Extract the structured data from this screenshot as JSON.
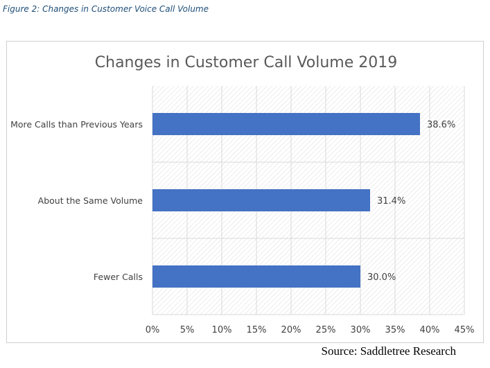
{
  "caption": "Figure 2: Changes in Customer Voice Call Volume",
  "source": "Source: Saddletree Research",
  "colors": {
    "bar": "#4472c4",
    "grid": "#d9d9d9",
    "title": "#595959",
    "text": "#404040",
    "caption": "#1f4e79"
  },
  "chart_data": {
    "type": "bar",
    "orientation": "horizontal",
    "title": "Changes in Customer Call Volume 2019",
    "categories": [
      "More Calls than Previous Years",
      "About the Same Volume",
      "Fewer Calls"
    ],
    "values": [
      38.6,
      31.4,
      30.0
    ],
    "data_labels": [
      "38.6%",
      "31.4%",
      "30.0%"
    ],
    "xlim": [
      0,
      45
    ],
    "xticks": [
      0,
      5,
      10,
      15,
      20,
      25,
      30,
      35,
      40,
      45
    ],
    "xtick_labels": [
      "0%",
      "5%",
      "10%",
      "15%",
      "20%",
      "25%",
      "30%",
      "35%",
      "40%",
      "45%"
    ],
    "xlabel": "",
    "ylabel": "",
    "grid": true,
    "legend": "none"
  }
}
